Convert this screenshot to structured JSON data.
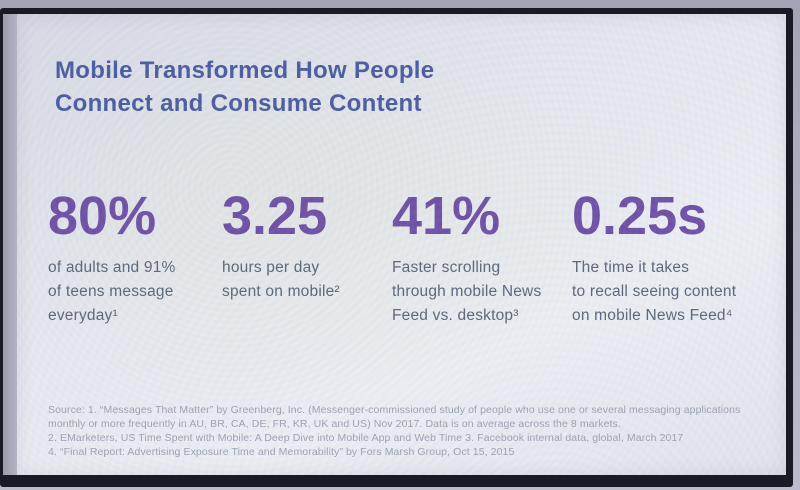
{
  "slide": {
    "title": {
      "line1": "Mobile Transformed How People",
      "line2": "Connect and Consume Content"
    },
    "stats": [
      {
        "value": "80%",
        "lines": [
          "of adults and 91%",
          "of teens message",
          "everyday¹"
        ]
      },
      {
        "value": "3.25",
        "lines": [
          "hours per day",
          "spent on mobile²"
        ]
      },
      {
        "value": "41%",
        "lines": [
          "Faster scrolling",
          "through mobile News",
          "Feed vs. desktop³"
        ]
      },
      {
        "value": "0.25s",
        "lines": [
          "The time it takes",
          "to recall seeing content",
          "on mobile News Feed⁴"
        ]
      }
    ],
    "source_lines": [
      "Source: 1. “Messages That Matter” by Greenberg, Inc. (Messenger-commissioned study of people who use one or several messaging applications",
      "monthly or more frequently in AU, BR, CA, DE, FR, KR, UK and US) Nov 2017. Data is on average across the 8 markets.",
      "2. EMarketers, US Time Spent with Mobile: A Deep Dive into Mobile App and Web Time 3. Facebook internal data, global, March 2017",
      "4. “Final Report: Advertising Exposure Time and Memorability” by Fors Marsh Group, Oct 15, 2015"
    ],
    "colors": {
      "title": "#45589c",
      "stat_value": "#6a4ca3",
      "stat_description": "#576275",
      "source_text": "#98a0af",
      "screen_background": "#e6e8f0",
      "bezel": "#181b25"
    }
  }
}
